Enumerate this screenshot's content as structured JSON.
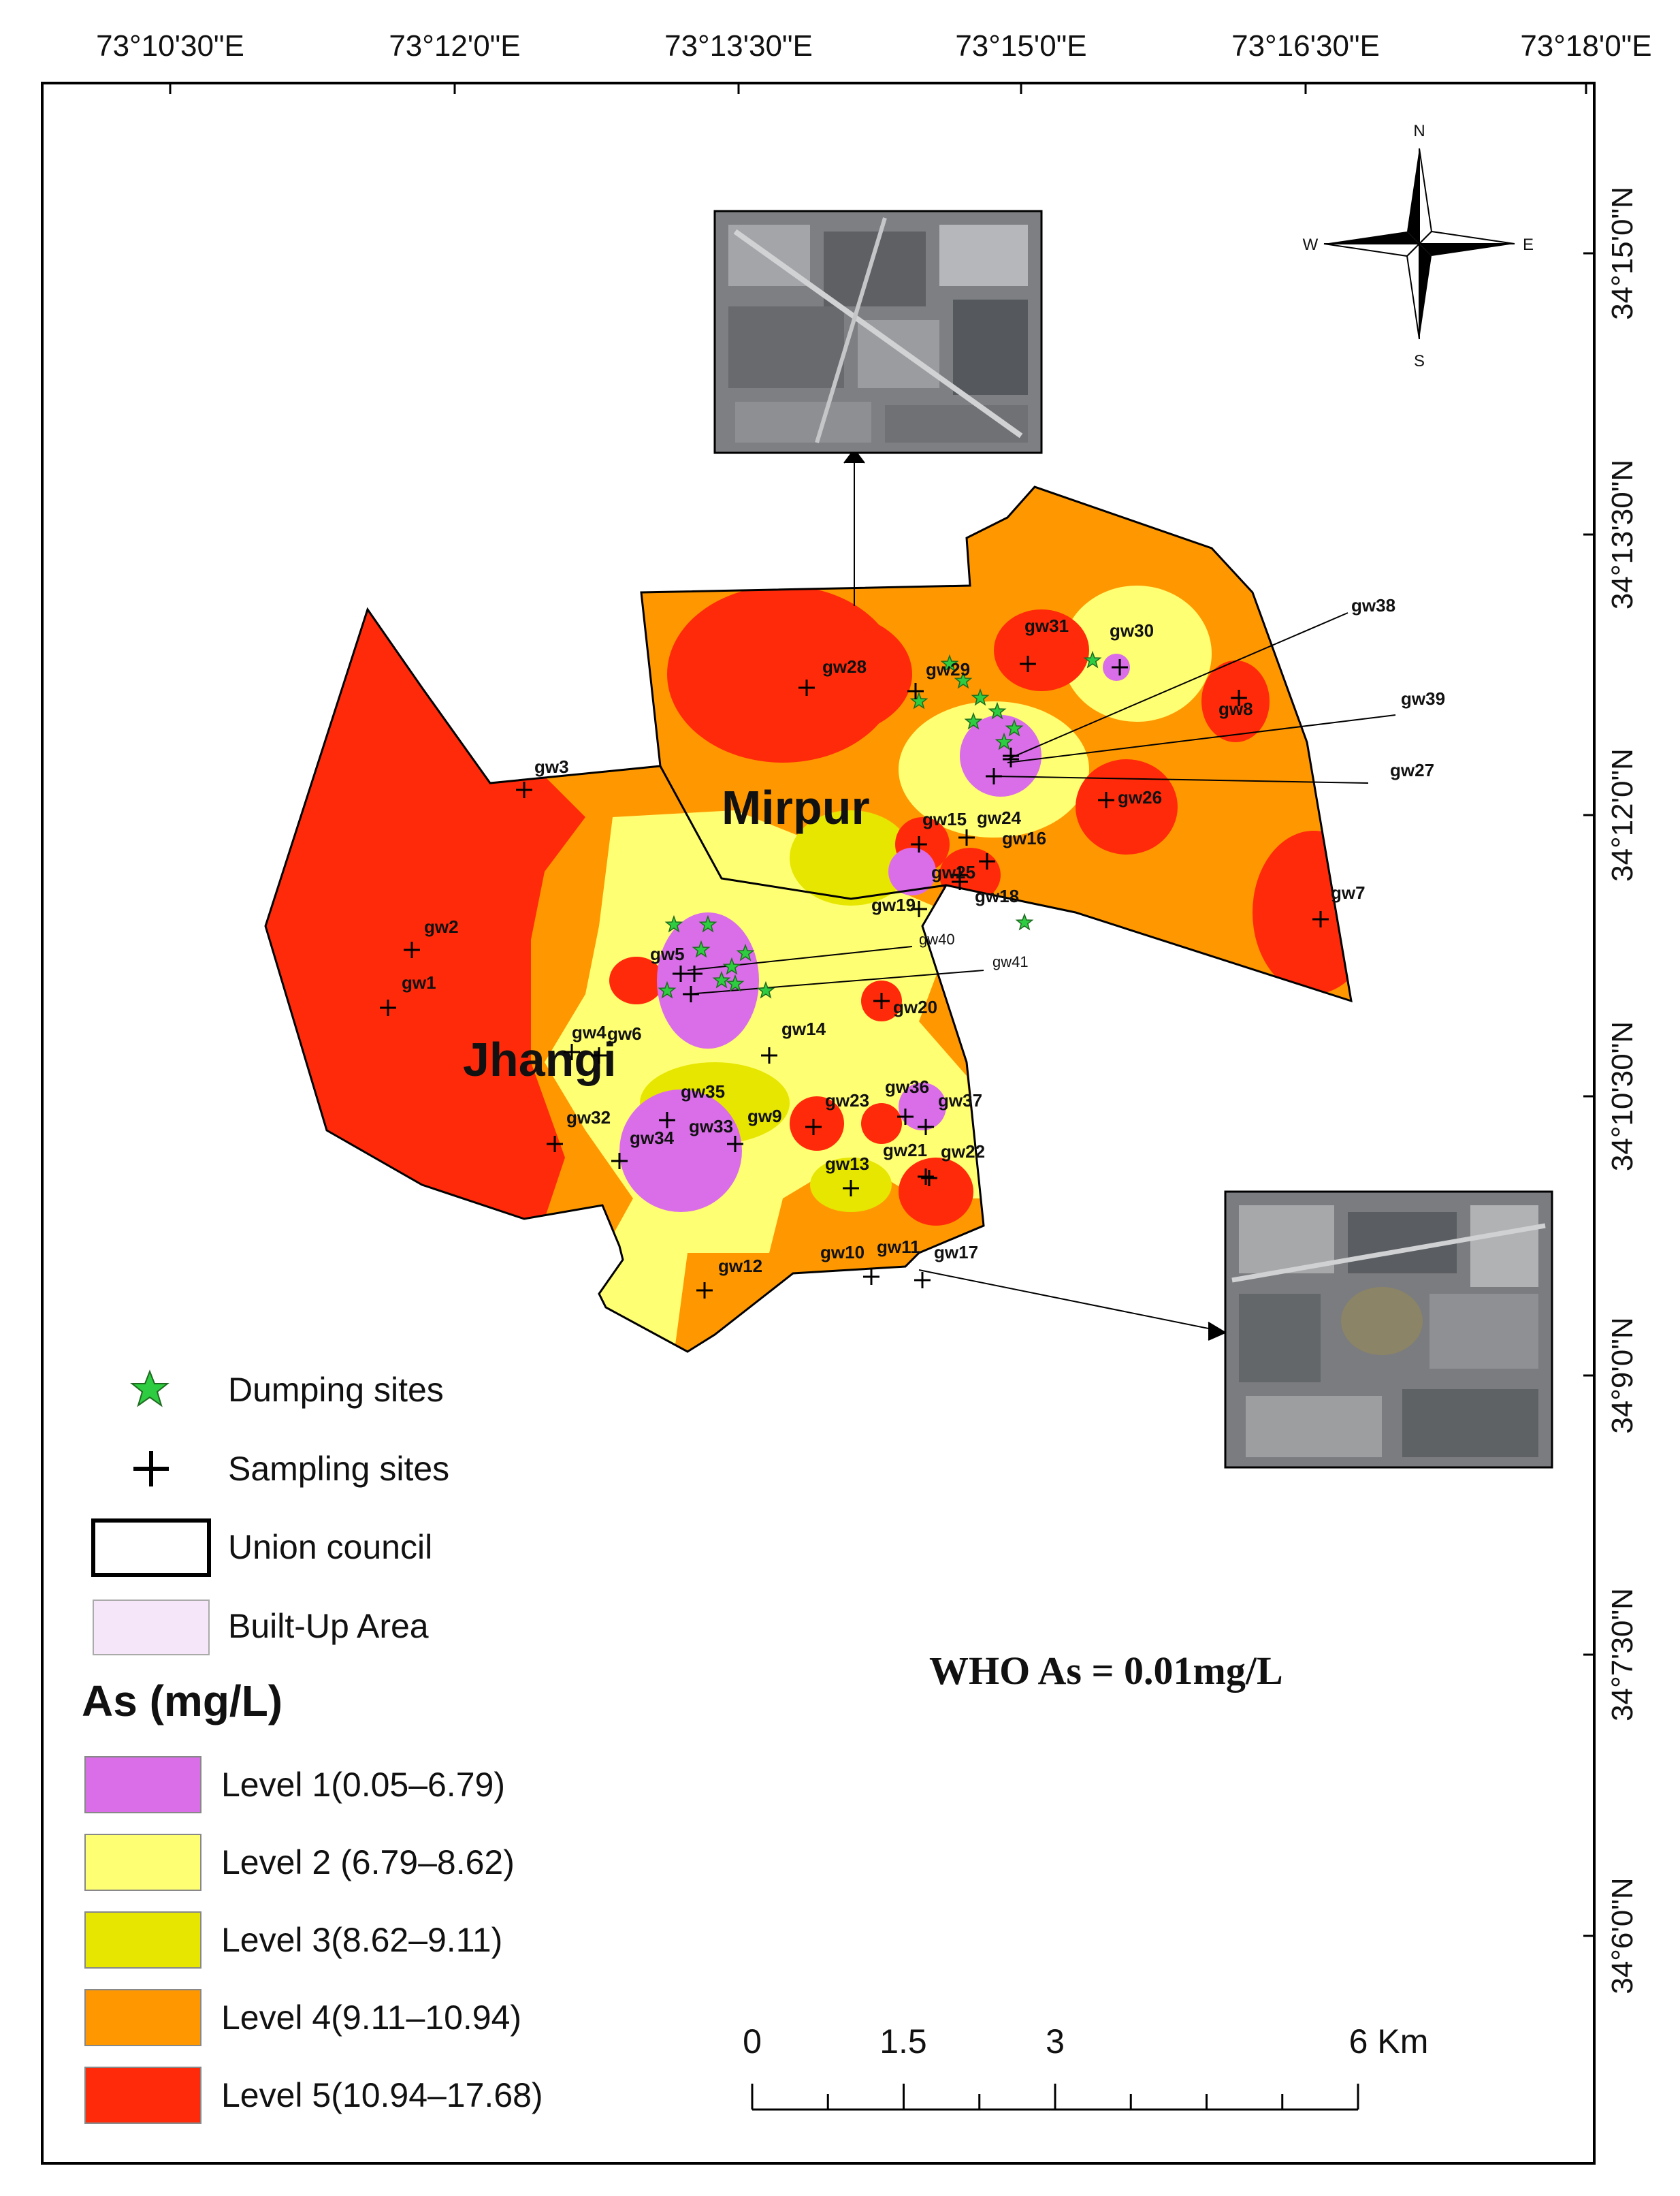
{
  "longitudes": [
    "73°10'30\"E",
    "73°12'0\"E",
    "73°13'30\"E",
    "73°15'0\"E",
    "73°16'30\"E",
    "73°18'0\"E"
  ],
  "latitudes": [
    "34°15'0\"N",
    "34°13'30\"N",
    "34°12'0\"N",
    "34°10'30\"N",
    "34°9'0\"N",
    "34°7'30\"N",
    "34°6'0\"N"
  ],
  "places": {
    "mirpur": "Mirpur",
    "jhangi": "Jhangi"
  },
  "compass": {
    "n": "N",
    "s": "S",
    "e": "E",
    "w": "W"
  },
  "wells": [
    "gw1",
    "gw2",
    "gw3",
    "gw4",
    "gw5",
    "gw6",
    "gw7",
    "gw8",
    "gw9",
    "gw10",
    "gw11",
    "gw12",
    "gw13",
    "gw14",
    "gw15",
    "gw16",
    "gw17",
    "gw18",
    "gw19",
    "gw20",
    "gw21",
    "gw22",
    "gw23",
    "gw24",
    "gw25",
    "gw26",
    "gw27",
    "gw28",
    "gw29",
    "gw30",
    "gw31",
    "gw32",
    "gw33",
    "gw34",
    "gw35",
    "gw36",
    "gw37",
    "gw38",
    "gw39",
    "gw40",
    "gw41"
  ],
  "legend": {
    "dumping": "Dumping sites",
    "sampling": "Sampling sites",
    "union": "Union council",
    "builtup": "Built-Up Area",
    "title": "As (mg/L)",
    "levels": [
      {
        "label": "Level 1(0.05–6.79)",
        "color": "#d96ee8"
      },
      {
        "label": "Level 2 (6.79–8.62)",
        "color": "#ffff73"
      },
      {
        "label": "Level 3(8.62–9.11)",
        "color": "#e6e600"
      },
      {
        "label": "Level 4(9.11–10.94)",
        "color": "#ff9800"
      },
      {
        "label": "Level 5(10.94–17.68)",
        "color": "#ff2a0a"
      }
    ]
  },
  "who_note": "WHO As = 0.01mg/L",
  "scale": {
    "ticks": [
      "0",
      "1.5",
      "3",
      "6 Km"
    ]
  },
  "colors": {
    "builtup": "#f5e6fa",
    "dumping": "#2ecc40"
  }
}
